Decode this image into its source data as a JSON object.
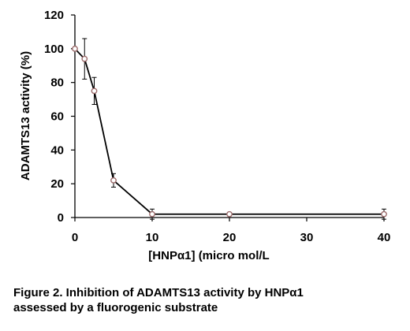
{
  "chart_data": {
    "type": "line",
    "title": "",
    "xlabel": "[HNPα1] (micro mol/L",
    "ylabel": "ADAMTS13 activity (%)",
    "xlim": [
      0,
      40
    ],
    "ylim": [
      0,
      120
    ],
    "xticks": [
      0,
      10,
      20,
      30,
      40
    ],
    "yticks": [
      0,
      20,
      40,
      60,
      80,
      100,
      120
    ],
    "grid": false,
    "legend": "none",
    "series": [
      {
        "color": "#000000",
        "marker": "open-circle",
        "marker_edge_color": "#9b6a6a",
        "points": [
          {
            "x": 0,
            "y": 100,
            "err": 0
          },
          {
            "x": 1.25,
            "y": 94,
            "err": 12
          },
          {
            "x": 2.5,
            "y": 75,
            "err": 8
          },
          {
            "x": 5,
            "y": 22,
            "err": 4
          },
          {
            "x": 10,
            "y": 2,
            "err": 3
          },
          {
            "x": 20,
            "y": 2,
            "err": 1
          },
          {
            "x": 40,
            "y": 2,
            "err": 3
          }
        ]
      }
    ]
  },
  "caption": {
    "line1": "Figure 2. Inhibition of ADAMTS13 activity by HNPα1",
    "line2": "assessed by a fluorogenic substrate"
  }
}
